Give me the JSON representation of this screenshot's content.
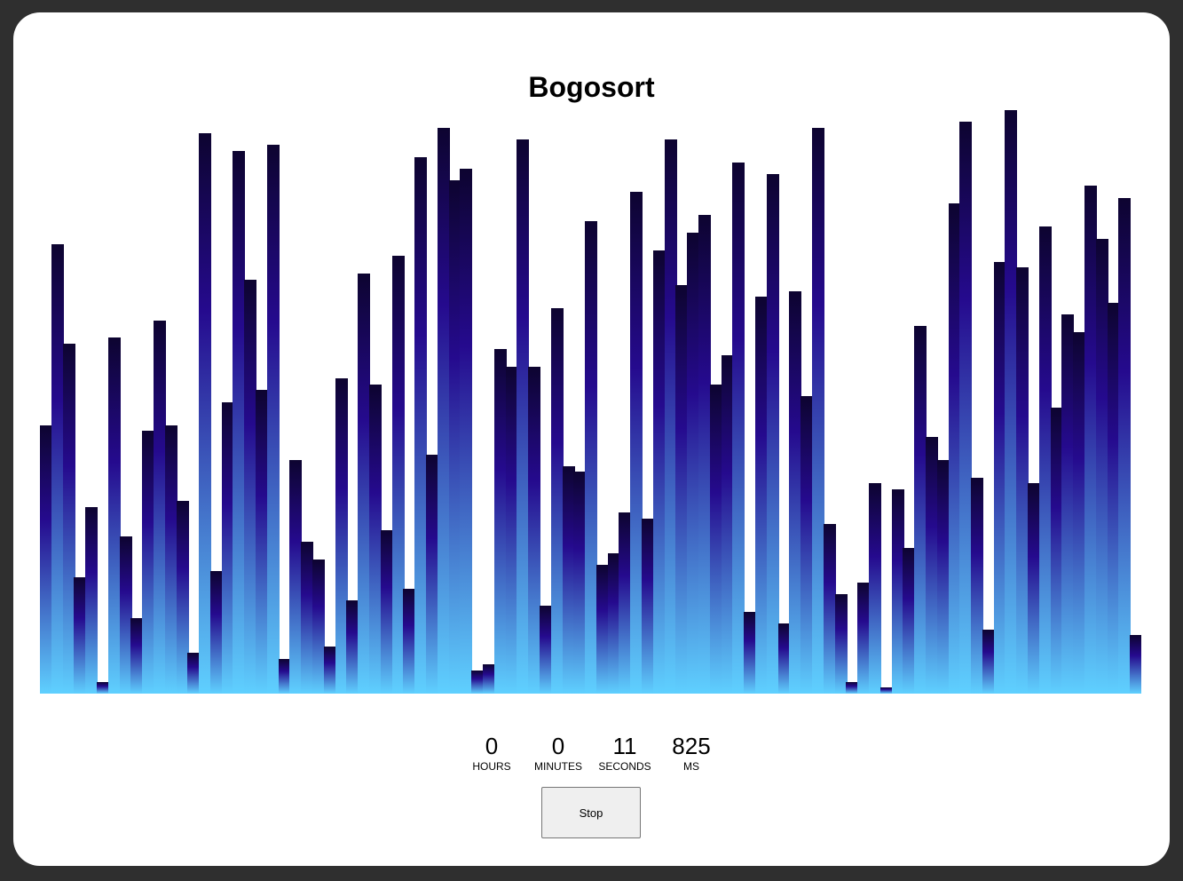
{
  "title": "Bogosort",
  "timer": {
    "hours": "0",
    "hours_label": "HOURS",
    "minutes": "0",
    "minutes_label": "MINUTES",
    "seconds": "11",
    "seconds_label": "SECONDS",
    "ms": "825",
    "ms_label": "MS"
  },
  "stop_label": "Stop",
  "colors": {
    "bar_top": "#0d0430",
    "bar_mid": "#250a8e",
    "bar_bottom": "#5fd0ff",
    "background": "#2f2f2f",
    "card": "#ffffff"
  },
  "chart_data": {
    "type": "bar",
    "values": [
      46,
      77,
      60,
      20,
      32,
      2,
      61,
      27,
      13,
      45,
      64,
      46,
      33,
      7,
      96,
      21,
      50,
      93,
      71,
      52,
      94,
      6,
      40,
      26,
      23,
      8,
      54,
      16,
      72,
      53,
      28,
      75,
      18,
      92,
      41,
      97,
      88,
      90,
      4,
      5,
      59,
      56,
      95,
      56,
      15,
      66,
      39,
      38,
      81,
      22,
      24,
      31,
      86,
      30,
      76,
      95,
      70,
      79,
      82,
      53,
      58,
      91,
      14,
      68,
      89,
      12,
      69,
      51,
      97,
      29,
      17,
      2,
      19,
      36,
      1,
      35,
      25,
      63,
      44,
      40,
      84,
      98,
      37,
      11,
      74,
      100,
      73,
      36,
      80,
      49,
      65,
      62,
      87,
      78,
      67,
      85,
      10
    ]
  }
}
